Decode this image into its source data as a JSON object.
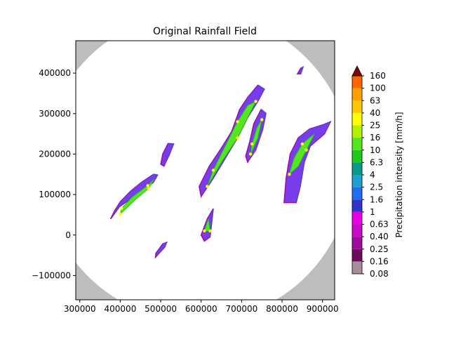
{
  "chart_data": {
    "type": "heatmap",
    "title": "Original Rainfall Field",
    "xlabel": "",
    "ylabel": "",
    "xlim": [
      290000,
      930000
    ],
    "ylim": [
      -160000,
      480000
    ],
    "x_ticks": [
      {
        "v": 300000,
        "label": "300000"
      },
      {
        "v": 400000,
        "label": "400000"
      },
      {
        "v": 500000,
        "label": "500000"
      },
      {
        "v": 600000,
        "label": "600000"
      },
      {
        "v": 700000,
        "label": "700000"
      },
      {
        "v": 800000,
        "label": "800000"
      },
      {
        "v": 900000,
        "label": "900000"
      }
    ],
    "y_ticks": [
      {
        "v": 400000,
        "label": "400000"
      },
      {
        "v": 300000,
        "label": "300000"
      },
      {
        "v": 200000,
        "label": "200000"
      },
      {
        "v": 100000,
        "label": "100000"
      },
      {
        "v": 0,
        "label": "0"
      },
      {
        "v": -100000,
        "label": "−100000"
      }
    ],
    "colorbar": {
      "label": "Precipitation intensity [mm/h]",
      "extend": "max",
      "extend_color": "#7a0a0a",
      "bins": [
        {
          "label": "0.08",
          "color": "#a98b9e"
        },
        {
          "label": "0.16",
          "color": "#6b0b5b"
        },
        {
          "label": "0.25",
          "color": "#9d0b9d"
        },
        {
          "label": "0.40",
          "color": "#c80bc8"
        },
        {
          "label": "0.63",
          "color": "#e600e6"
        },
        {
          "label": "1",
          "color": "#3333cc"
        },
        {
          "label": "1.6",
          "color": "#1e6ef0"
        },
        {
          "label": "2.5",
          "color": "#1ea0d0"
        },
        {
          "label": "4",
          "color": "#0a9a8a"
        },
        {
          "label": "6.3",
          "color": "#1ec81e"
        },
        {
          "label": "10",
          "color": "#55e61e"
        },
        {
          "label": "16",
          "color": "#b4f000"
        },
        {
          "label": "25",
          "color": "#ffff00"
        },
        {
          "label": "40",
          "color": "#ffc800"
        },
        {
          "label": "63",
          "color": "#ffa000"
        },
        {
          "label": "100",
          "color": "#ff6400"
        },
        {
          "label": "160",
          "color": "#dd1400"
        }
      ]
    },
    "background": {
      "outside_radar_color": "#bdbdbd",
      "inside_radar_color": "#ffffff"
    },
    "rain_bands": [
      {
        "name": "band-west",
        "path": [
          [
            378000,
            42000
          ],
          [
            398000,
            70000
          ],
          [
            430000,
            92000
          ],
          [
            458000,
            112000
          ],
          [
            482000,
            130000
          ],
          [
            492000,
            148000
          ],
          [
            482000,
            150000
          ],
          [
            452000,
            130000
          ],
          [
            425000,
            108000
          ],
          [
            400000,
            82000
          ],
          [
            386000,
            60000
          ],
          [
            376000,
            40000
          ]
        ],
        "core": [
          [
            400000,
            52000
          ],
          [
            440000,
            90000
          ],
          [
            470000,
            115000
          ],
          [
            484000,
            138000
          ],
          [
            468000,
            122000
          ],
          [
            430000,
            94000
          ],
          [
            403000,
            66000
          ]
        ]
      },
      {
        "name": "band-small-south",
        "path": [
          [
            487000,
            -55000
          ],
          [
            510000,
            -30000
          ],
          [
            515000,
            -18000
          ],
          [
            505000,
            -22000
          ],
          [
            488000,
            -45000
          ]
        ],
        "core": []
      },
      {
        "name": "band-mid-west",
        "path": [
          [
            508000,
            170000
          ],
          [
            522000,
            200000
          ],
          [
            532000,
            225000
          ],
          [
            518000,
            226000
          ],
          [
            505000,
            200000
          ],
          [
            500000,
            175000
          ]
        ],
        "core": []
      },
      {
        "name": "band-central",
        "path": [
          [
            600000,
            95000
          ],
          [
            630000,
            140000
          ],
          [
            660000,
            190000
          ],
          [
            690000,
            240000
          ],
          [
            715000,
            290000
          ],
          [
            740000,
            330000
          ],
          [
            756000,
            360000
          ],
          [
            740000,
            370000
          ],
          [
            715000,
            340000
          ],
          [
            695000,
            310000
          ],
          [
            675000,
            255000
          ],
          [
            650000,
            215000
          ],
          [
            620000,
            170000
          ],
          [
            595000,
            120000
          ]
        ],
        "core": [
          [
            615000,
            120000
          ],
          [
            650000,
            180000
          ],
          [
            690000,
            240000
          ],
          [
            720000,
            300000
          ],
          [
            735000,
            330000
          ],
          [
            715000,
            320000
          ],
          [
            690000,
            280000
          ],
          [
            660000,
            220000
          ],
          [
            630000,
            160000
          ]
        ]
      },
      {
        "name": "band-central-east",
        "path": [
          [
            715000,
            180000
          ],
          [
            735000,
            210000
          ],
          [
            752000,
            260000
          ],
          [
            760000,
            300000
          ],
          [
            748000,
            310000
          ],
          [
            730000,
            275000
          ],
          [
            720000,
            230000
          ],
          [
            710000,
            195000
          ]
        ],
        "core": [
          [
            722000,
            200000
          ],
          [
            740000,
            240000
          ],
          [
            750000,
            285000
          ],
          [
            738000,
            265000
          ],
          [
            726000,
            225000
          ]
        ]
      },
      {
        "name": "band-south-central",
        "path": [
          [
            600000,
            0
          ],
          [
            615000,
            40000
          ],
          [
            630000,
            65000
          ],
          [
            622000,
            -5000
          ],
          [
            608000,
            -15000
          ]
        ],
        "core": [
          [
            608000,
            10000
          ],
          [
            618000,
            40000
          ],
          [
            622000,
            10000
          ]
        ]
      },
      {
        "name": "band-east",
        "path": [
          [
            805000,
            80000
          ],
          [
            810000,
            140000
          ],
          [
            820000,
            200000
          ],
          [
            840000,
            240000
          ],
          [
            868000,
            262000
          ],
          [
            900000,
            272000
          ],
          [
            920000,
            280000
          ],
          [
            905000,
            250000
          ],
          [
            870000,
            220000
          ],
          [
            855000,
            180000
          ],
          [
            845000,
            120000
          ],
          [
            835000,
            80000
          ]
        ],
        "core": [
          [
            818000,
            150000
          ],
          [
            830000,
            190000
          ],
          [
            850000,
            225000
          ],
          [
            880000,
            250000
          ],
          [
            860000,
            210000
          ],
          [
            840000,
            170000
          ]
        ]
      },
      {
        "name": "band-ne-cell",
        "path": [
          [
            838000,
            398000
          ],
          [
            846000,
            412000
          ],
          [
            852000,
            415000
          ],
          [
            846000,
            398000
          ]
        ],
        "core": []
      }
    ]
  }
}
